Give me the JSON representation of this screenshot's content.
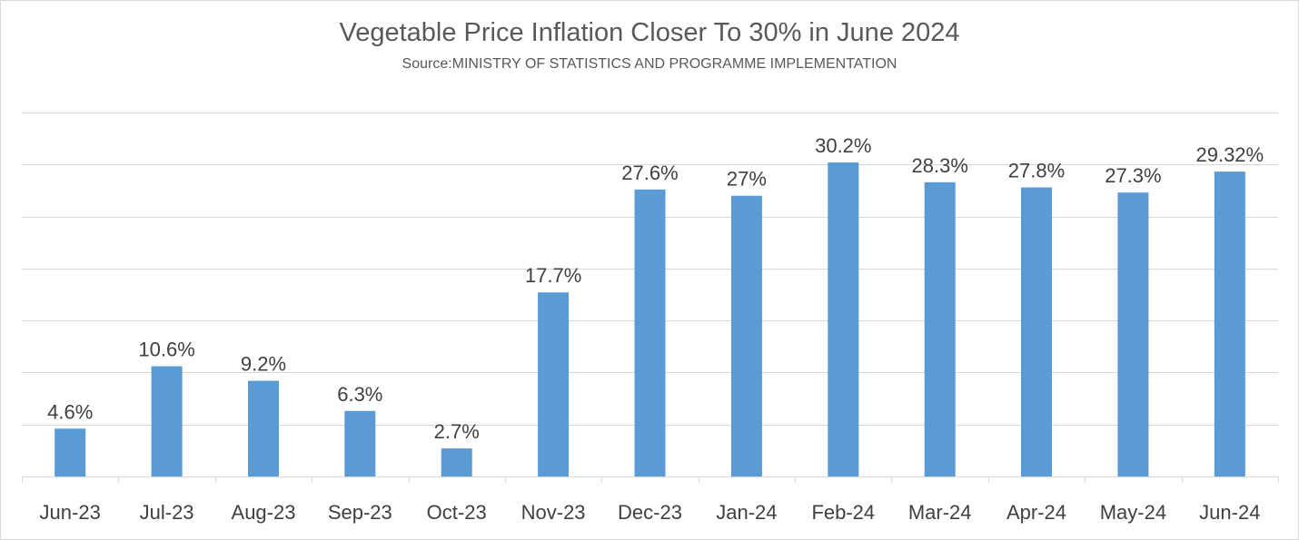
{
  "chart_data": {
    "type": "bar",
    "title": "Vegetable Price Inflation Closer To 30% in June 2024",
    "subtitle": "Source:MINISTRY OF STATISTICS AND PROGRAMME IMPLEMENTATION",
    "categories": [
      "Jun-23",
      "Jul-23",
      "Aug-23",
      "Sep-23",
      "Oct-23",
      "Nov-23",
      "Dec-23",
      "Jan-24",
      "Feb-24",
      "Mar-24",
      "Apr-24",
      "May-24",
      "Jun-24"
    ],
    "values": [
      4.6,
      10.6,
      9.2,
      6.3,
      2.7,
      17.7,
      27.6,
      27,
      30.2,
      28.3,
      27.8,
      27.3,
      29.32
    ],
    "data_labels": [
      "4.6%",
      "10.6%",
      "9.2%",
      "6.3%",
      "2.7%",
      "17.7%",
      "27.6%",
      "27%",
      "30.2%",
      "28.3%",
      "27.8%",
      "27.3%",
      "29.32%"
    ],
    "ylim": [
      0,
      35
    ],
    "y_gridlines": [
      5,
      10,
      15,
      20,
      25,
      30,
      35
    ],
    "grid": true,
    "legend": "none",
    "bar_color": "#5b9bd5"
  }
}
